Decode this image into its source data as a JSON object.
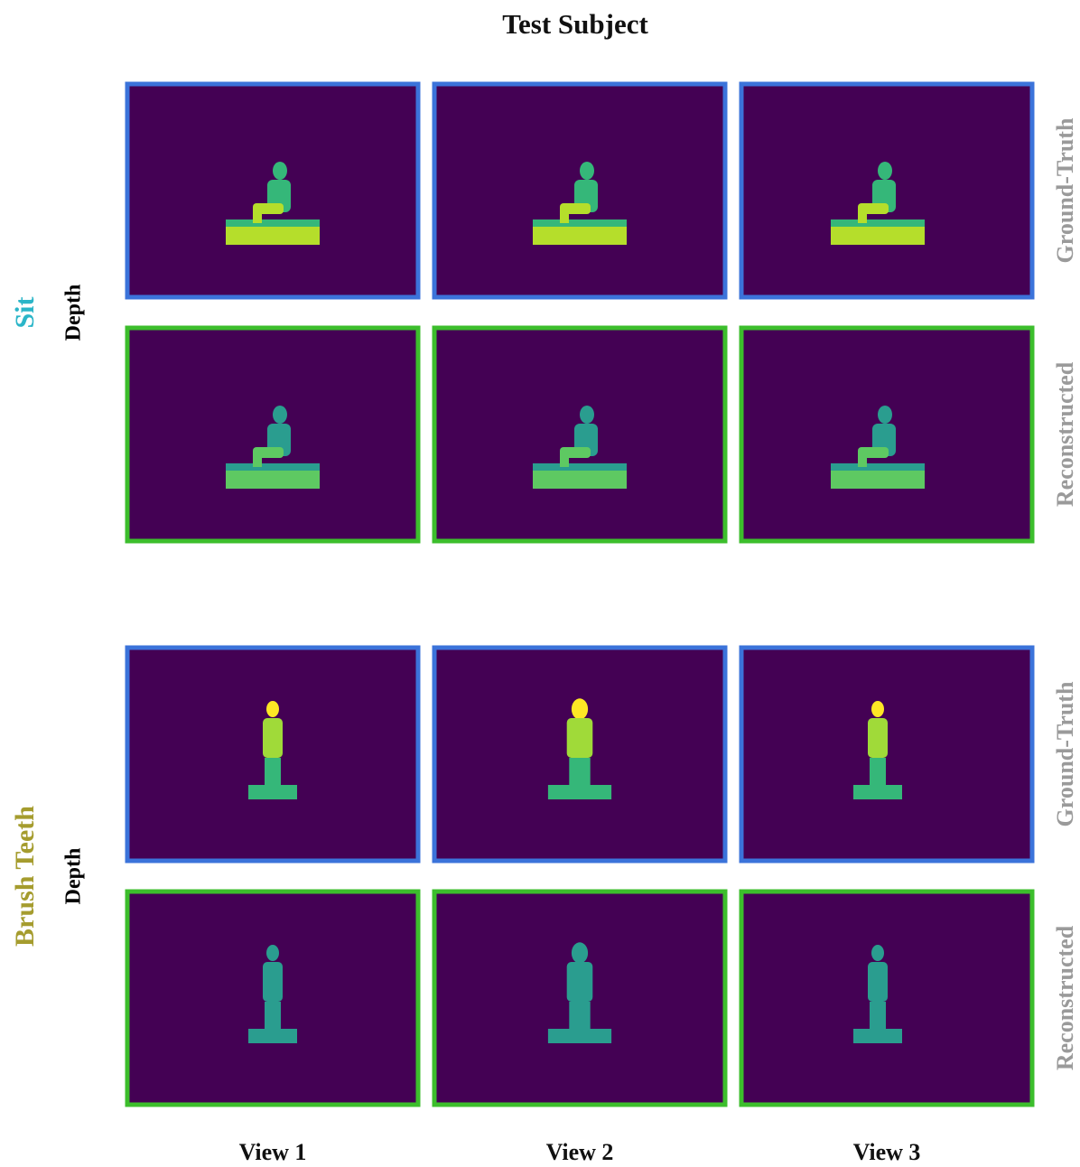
{
  "title": "Test Subject",
  "columns": [
    "View 1",
    "View 2",
    "View 3"
  ],
  "groups": [
    {
      "action": "Sit",
      "modality": "Depth",
      "rows": [
        "Ground-Truth",
        "Reconstructed"
      ]
    },
    {
      "action": "Brush Teeth",
      "modality": "Depth",
      "rows": [
        "Ground-Truth",
        "Reconstructed"
      ]
    }
  ]
}
